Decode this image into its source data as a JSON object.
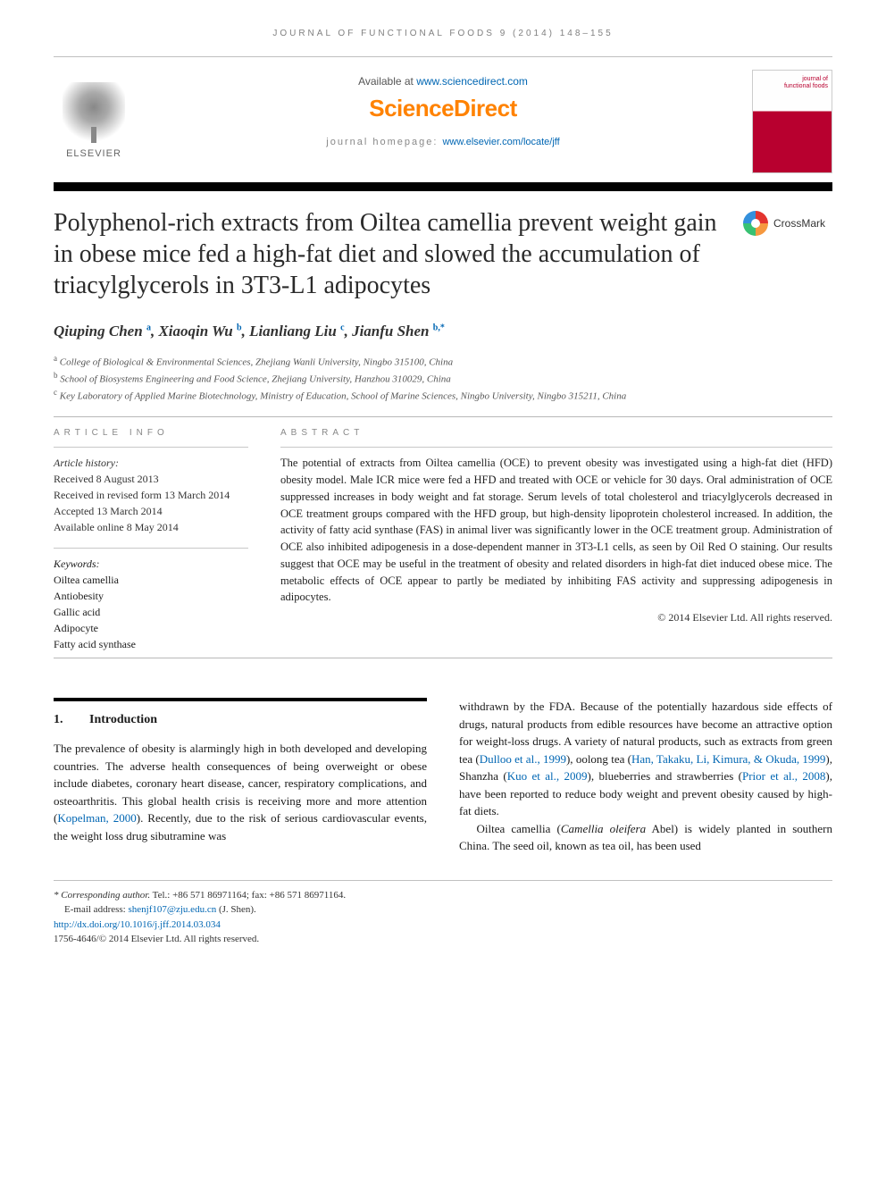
{
  "running_head": "journal of functional foods 9 (2014) 148–155",
  "header": {
    "available_prefix": "Available at ",
    "available_url": "www.sciencedirect.com",
    "sd_logo": "ScienceDirect",
    "homepage_prefix": "journal homepage: ",
    "homepage_url": "www.elsevier.com/locate/jff",
    "elsevier": "ELSEVIER",
    "cover_title_line1": "journal of",
    "cover_title_line2": "functional foods"
  },
  "crossmark": "CrossMark",
  "title": "Polyphenol-rich extracts from Oiltea camellia prevent weight gain in obese mice fed a high-fat diet and slowed the accumulation of triacylglycerols in 3T3-L1 adipocytes",
  "authors": [
    {
      "name": "Qiuping Chen",
      "aff": "a"
    },
    {
      "name": "Xiaoqin Wu",
      "aff": "b"
    },
    {
      "name": "Lianliang Liu",
      "aff": "c"
    },
    {
      "name": "Jianfu Shen",
      "aff": "b,*"
    }
  ],
  "affiliations": [
    {
      "key": "a",
      "text": "College of Biological & Environmental Sciences, Zhejiang Wanli University, Ningbo 315100, China"
    },
    {
      "key": "b",
      "text": "School of Biosystems Engineering and Food Science, Zhejiang University, Hanzhou 310029, China"
    },
    {
      "key": "c",
      "text": "Key Laboratory of Applied Marine Biotechnology, Ministry of Education, School of Marine Sciences, Ningbo University, Ningbo 315211, China"
    }
  ],
  "article_info_label": "ARTICLE INFO",
  "abstract_label": "ABSTRACT",
  "history_label": "Article history:",
  "history": [
    "Received 8 August 2013",
    "Received in revised form 13 March 2014",
    "Accepted 13 March 2014",
    "Available online 8 May 2014"
  ],
  "keywords_label": "Keywords:",
  "keywords": [
    "Oiltea camellia",
    "Antiobesity",
    "Gallic acid",
    "Adipocyte",
    "Fatty acid synthase"
  ],
  "abstract": "The potential of extracts from Oiltea camellia (OCE) to prevent obesity was investigated using a high-fat diet (HFD) obesity model. Male ICR mice were fed a HFD and treated with OCE or vehicle for 30 days. Oral administration of OCE suppressed increases in body weight and fat storage. Serum levels of total cholesterol and triacylglycerols decreased in OCE treatment groups compared with the HFD group, but high-density lipoprotein cholesterol increased. In addition, the activity of fatty acid synthase (FAS) in animal liver was significantly lower in the OCE treatment group. Administration of OCE also inhibited adipogenesis in a dose-dependent manner in 3T3-L1 cells, as seen by Oil Red O staining. Our results suggest that OCE may be useful in the treatment of obesity and related disorders in high-fat diet induced obese mice. The metabolic effects of OCE appear to partly be mediated by inhibiting FAS activity and suppressing adipogenesis in adipocytes.",
  "copyright": "© 2014 Elsevier Ltd. All rights reserved.",
  "section1": {
    "num": "1.",
    "title": "Introduction"
  },
  "body_left_p1_a": "The prevalence of obesity is alarmingly high in both developed and developing countries. The adverse health consequences of being overweight or obese include diabetes, coronary heart disease, cancer, respiratory complications, and osteoarthritis. This global health crisis is receiving more and more attention (",
  "body_left_ref1": "Kopelman, 2000",
  "body_left_p1_b": "). Recently, due to the risk of serious cardiovascular events, the weight loss drug sibutramine was",
  "body_right_p1_a": "withdrawn by the FDA. Because of the potentially hazardous side effects of drugs, natural products from edible resources have become an attractive option for weight-loss drugs. A variety of natural products, such as extracts from green tea (",
  "body_right_ref1": "Dulloo et al., 1999",
  "body_right_p1_b": "), oolong tea (",
  "body_right_ref2": "Han, Takaku, Li, Kimura, & Okuda, 1999",
  "body_right_p1_c": "), Shanzha (",
  "body_right_ref3": "Kuo et al., 2009",
  "body_right_p1_d": "), blueberries and strawberries (",
  "body_right_ref4": "Prior et al., 2008",
  "body_right_p1_e": "), have been reported to reduce body weight and prevent obesity caused by high-fat diets.",
  "body_right_p2_a": "Oiltea camellia (",
  "body_right_p2_i": "Camellia oleifera",
  "body_right_p2_b": " Abel) is widely planted in southern China. The seed oil, known as tea oil, has been used",
  "footer": {
    "corr_label": "* Corresponding author.",
    "corr_contact": " Tel.: +86 571 86971164; fax: +86 571 86971164.",
    "email_label": "E-mail address: ",
    "email": "shenjf107@zju.edu.cn",
    "email_suffix": " (J. Shen).",
    "doi": "http://dx.doi.org/10.1016/j.jff.2014.03.034",
    "issn_copy": "1756-4646/© 2014 Elsevier Ltd. All rights reserved."
  },
  "colors": {
    "orange": "#ff8200",
    "link": "#0066b3",
    "maroon": "#b8002f"
  }
}
